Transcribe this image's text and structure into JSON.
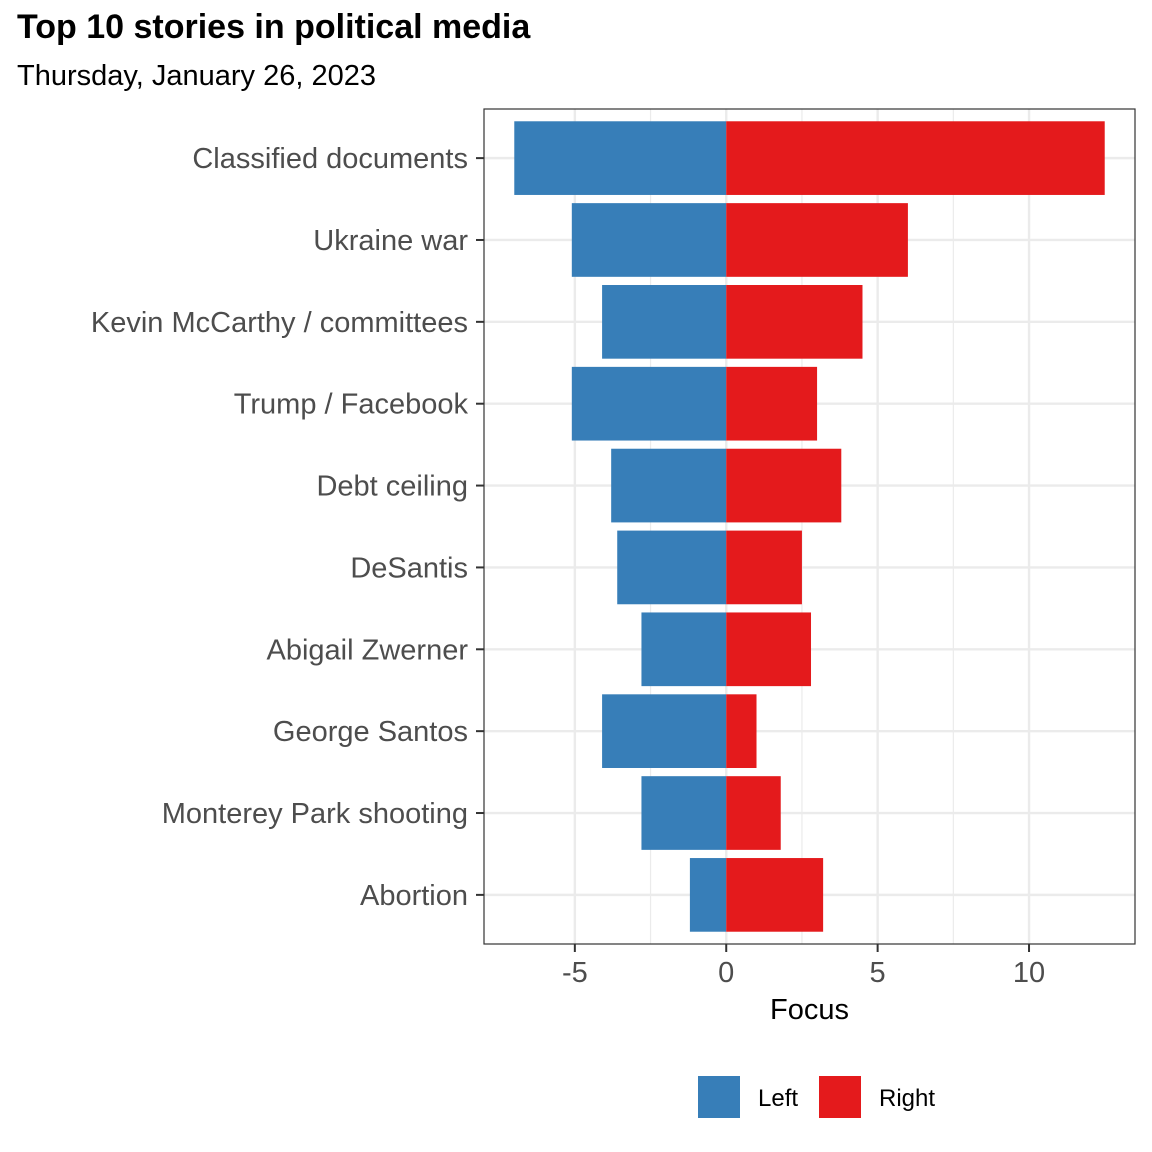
{
  "header": {
    "title": "Top 10 stories in political media",
    "subtitle": "Thursday, January 26, 2023"
  },
  "chart_data": {
    "type": "bar",
    "orientation": "horizontal",
    "stacked": "diverging",
    "categories": [
      "Classified documents",
      "Ukraine war",
      "Kevin McCarthy / committees",
      "Trump / Facebook",
      "Debt ceiling",
      "DeSantis",
      "Abigail Zwerner",
      "George Santos",
      "Monterey Park shooting",
      "Abortion"
    ],
    "series": [
      {
        "name": "Left",
        "color": "#377eb8",
        "values": [
          -7.0,
          -5.1,
          -4.1,
          -5.1,
          -3.8,
          -3.6,
          -2.8,
          -4.1,
          -2.8,
          -1.2
        ]
      },
      {
        "name": "Right",
        "color": "#e41a1c",
        "values": [
          12.5,
          6.0,
          4.5,
          3.0,
          3.8,
          2.5,
          2.8,
          1.0,
          1.8,
          3.2
        ]
      }
    ],
    "xlabel": "Focus",
    "ylabel": "",
    "xlim": [
      -8.0,
      13.5
    ],
    "xticks": [
      -5,
      0,
      5,
      10
    ],
    "xtick_labels": [
      "-5",
      "0",
      "5",
      "10"
    ],
    "grid": true,
    "legend_position": "bottom"
  }
}
